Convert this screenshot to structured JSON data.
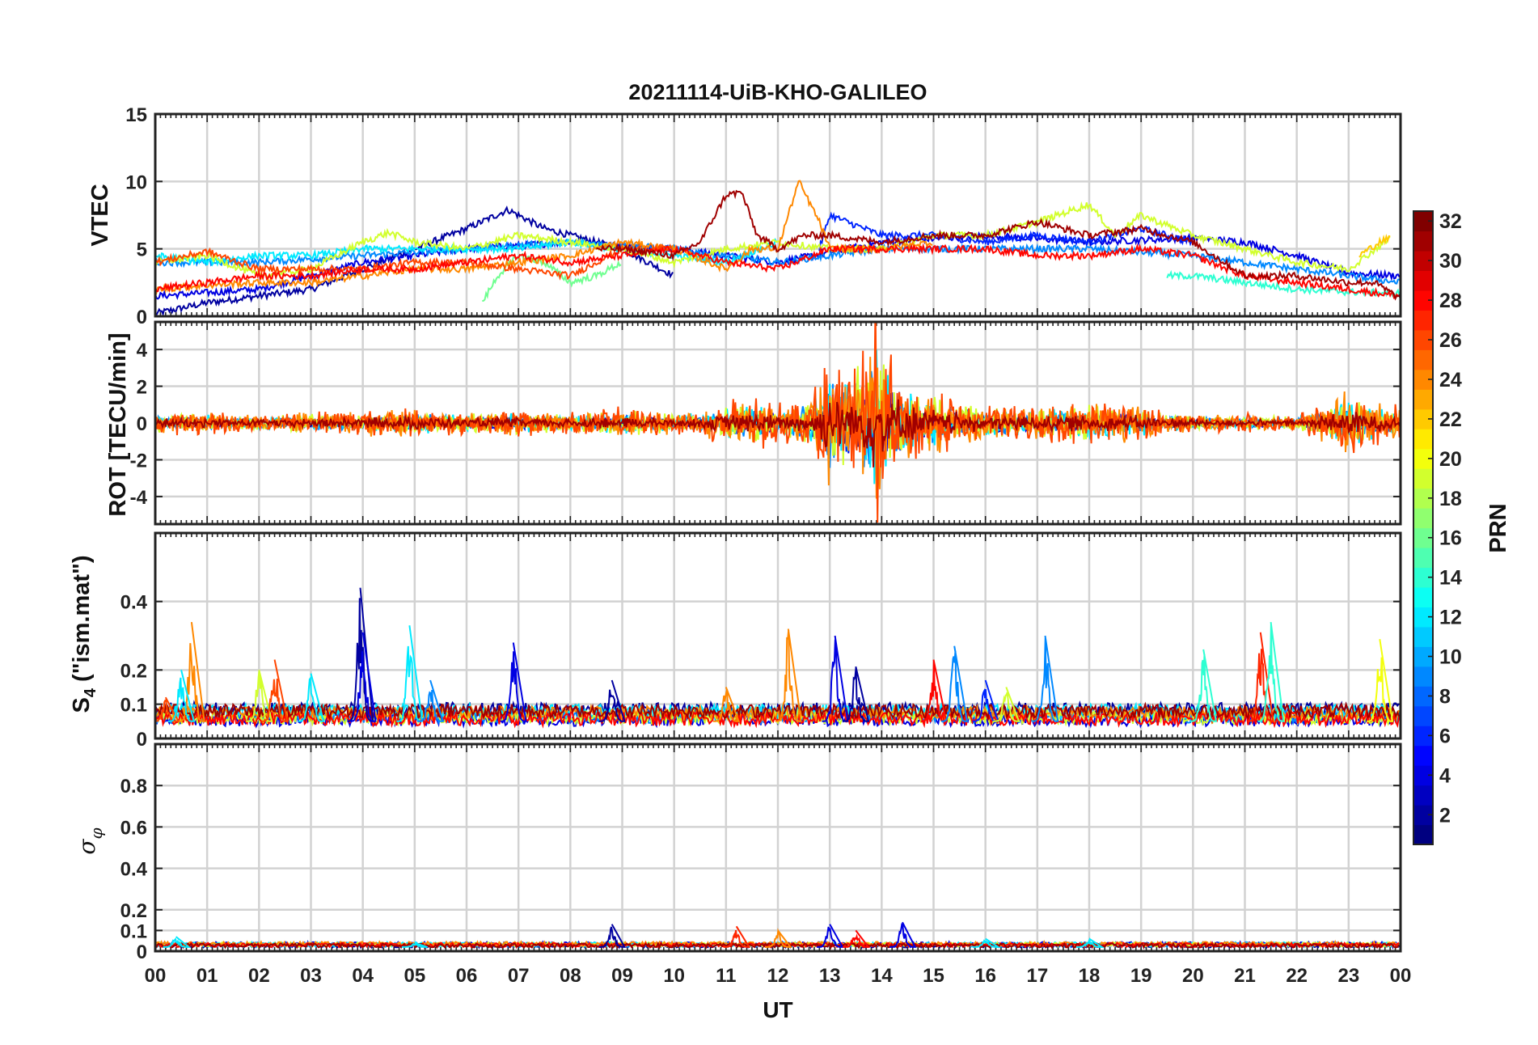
{
  "figure": {
    "title": "20211114-UiB-KHO-GALILEO",
    "xlabel": "UT",
    "x_tick_labels": [
      "00",
      "01",
      "02",
      "03",
      "04",
      "05",
      "06",
      "07",
      "08",
      "09",
      "10",
      "11",
      "12",
      "13",
      "14",
      "15",
      "16",
      "17",
      "18",
      "19",
      "20",
      "21",
      "22",
      "23",
      "00"
    ]
  },
  "colorbar": {
    "label": "PRN",
    "ticks": [
      2,
      4,
      6,
      8,
      10,
      12,
      14,
      16,
      18,
      20,
      22,
      24,
      26,
      28,
      30,
      32
    ],
    "range": [
      1,
      32
    ],
    "colormap": "jet"
  },
  "chart_data": [
    {
      "type": "line",
      "panel": "vtec",
      "ylabel": "VTEC",
      "ylim": [
        0,
        15
      ],
      "yticks": [
        0,
        5,
        10,
        15
      ],
      "xlim": [
        0,
        24
      ],
      "grid": true,
      "series": [
        {
          "prn": 2,
          "x": [
            0,
            1,
            2,
            3,
            4,
            5,
            6,
            6.8,
            7.5,
            8,
            9,
            10
          ],
          "y": [
            0.2,
            1,
            1.5,
            2,
            3.5,
            5,
            6.5,
            7.9,
            6.5,
            6,
            5,
            3
          ]
        },
        {
          "prn": 4,
          "x": [
            0,
            2,
            4,
            6,
            8,
            10,
            12,
            14,
            16,
            18,
            20,
            21,
            22,
            23,
            24
          ],
          "y": [
            1.5,
            2,
            4,
            5,
            5.5,
            5,
            4,
            5.5,
            6,
            5.5,
            5.8,
            5.5,
            4.5,
            3.2,
            3
          ]
        },
        {
          "prn": 6,
          "x": [
            12.8,
            13,
            14,
            15,
            16,
            17,
            18,
            19,
            20
          ],
          "y": [
            5,
            7.5,
            6,
            6,
            5.5,
            6,
            5.5,
            6.5,
            5.5
          ]
        },
        {
          "prn": 9,
          "x": [
            0,
            2,
            4,
            6,
            8,
            10,
            12,
            14,
            16,
            18,
            20,
            22,
            24
          ],
          "y": [
            4,
            4,
            4.5,
            5,
            5.5,
            5,
            4,
            5,
            5,
            5,
            4.5,
            3.5,
            2.5
          ]
        },
        {
          "prn": 12,
          "x": [
            0,
            1,
            2,
            3,
            4,
            5,
            6,
            7,
            8,
            9,
            10,
            11,
            12
          ],
          "y": [
            4.5,
            4,
            4.5,
            4.5,
            5,
            5,
            5,
            5,
            5.5,
            5,
            4.5,
            4,
            5.5
          ]
        },
        {
          "prn": 14,
          "x": [
            19.5,
            20,
            21,
            22,
            23,
            24
          ],
          "y": [
            3,
            3,
            2.5,
            2,
            1.8,
            1.7
          ]
        },
        {
          "prn": 16,
          "x": [
            6.3,
            6.6,
            7,
            7.5,
            8,
            8.5,
            9
          ],
          "y": [
            1,
            3,
            4.5,
            4,
            2.5,
            3,
            4
          ]
        },
        {
          "prn": 19,
          "x": [
            0,
            1,
            2,
            3,
            4,
            4.5,
            5,
            6,
            7,
            8,
            9,
            10,
            11,
            12,
            13,
            14,
            15,
            16,
            17,
            18,
            18.5,
            19,
            20,
            21,
            22,
            23,
            23.8
          ],
          "y": [
            4,
            4.5,
            3,
            3.5,
            5.5,
            6.2,
            5.5,
            5,
            6,
            5.5,
            5,
            4,
            5,
            5.5,
            5,
            5,
            6,
            6,
            7,
            8.3,
            6,
            7.5,
            6,
            5,
            4,
            3.5,
            5.8
          ]
        },
        {
          "prn": 22,
          "x": [
            23.2,
            23.6,
            23.8
          ],
          "y": [
            4.5,
            5.5,
            5.8
          ]
        },
        {
          "prn": 24,
          "x": [
            0,
            1,
            2,
            3,
            4,
            5,
            6,
            7,
            8,
            9,
            10,
            11,
            11.5,
            12,
            12.4,
            12.8,
            13,
            14,
            15
          ],
          "y": [
            2,
            2.3,
            2.5,
            2.5,
            3,
            3.5,
            3.5,
            4,
            4.5,
            5.5,
            5,
            3.5,
            5,
            5,
            10,
            7,
            5,
            5,
            5.5
          ]
        },
        {
          "prn": 26,
          "x": [
            0,
            1,
            2,
            3,
            4,
            5,
            6,
            7,
            8,
            9,
            10
          ],
          "y": [
            4,
            4.8,
            3.5,
            3.5,
            3.5,
            4,
            4,
            3.5,
            3,
            5,
            5
          ]
        },
        {
          "prn": 28,
          "x": [
            0,
            1,
            2,
            3,
            4,
            5,
            6,
            7,
            8,
            9,
            10,
            11,
            12,
            13,
            14,
            15,
            16,
            17,
            18,
            19,
            20,
            21,
            22,
            23,
            24
          ],
          "y": [
            2,
            2.5,
            3,
            3,
            3.5,
            3.5,
            4,
            4.5,
            4,
            4.5,
            5,
            4,
            3.5,
            5,
            5,
            5,
            5,
            4.5,
            4.5,
            5,
            4.5,
            3,
            2.5,
            2,
            1.5
          ]
        },
        {
          "prn": 31,
          "x": [
            8.5,
            9,
            10,
            10.5,
            11,
            11.3,
            11.6,
            12,
            12.5,
            13,
            14,
            15,
            16,
            17,
            18,
            19,
            20,
            21,
            22,
            23,
            23.5,
            24
          ],
          "y": [
            5,
            5,
            4.5,
            5.5,
            9,
            9.2,
            6,
            5,
            6,
            6,
            5.5,
            6,
            6,
            7,
            6,
            6.5,
            5.5,
            3,
            3,
            2.5,
            2.5,
            1.3
          ]
        }
      ]
    },
    {
      "type": "line",
      "panel": "rot",
      "ylabel": "ROT [TECU/min]",
      "ylim": [
        -5.5,
        5.5
      ],
      "yticks": [
        -4,
        -2,
        0,
        2,
        4
      ],
      "xlim": [
        0,
        24
      ],
      "grid": true,
      "envelope": {
        "x": [
          0,
          1,
          2,
          3,
          4,
          5,
          6,
          7,
          8,
          9,
          10,
          10.5,
          11,
          11.5,
          12,
          12.5,
          12.8,
          13,
          13.3,
          13.6,
          13.9,
          14.2,
          14.6,
          15,
          16,
          17,
          18,
          19,
          20,
          21,
          22,
          23,
          23.5,
          24
        ],
        "amplitude": [
          0.5,
          0.5,
          0.4,
          0.5,
          0.6,
          0.7,
          0.5,
          0.6,
          0.5,
          0.7,
          0.5,
          0.6,
          1.0,
          1.2,
          0.9,
          1.2,
          2.0,
          3.5,
          2.5,
          3.0,
          5.3,
          3.0,
          2.0,
          1.5,
          0.8,
          0.8,
          1.0,
          0.8,
          0.4,
          0.4,
          0.3,
          1.5,
          1.0,
          0.8
        ]
      },
      "series_prns": [
        2,
        4,
        9,
        12,
        19,
        24,
        26,
        31
      ]
    },
    {
      "type": "line",
      "panel": "s4",
      "ylabel": "S4 (\"ism.mat\")",
      "ylim": [
        0,
        0.6
      ],
      "yticks": [
        0,
        0.1,
        0.2,
        0.4
      ],
      "xlim": [
        0,
        24
      ],
      "grid": true,
      "baseline": 0.05,
      "spikes": [
        {
          "prn": 26,
          "x": 0.2,
          "y": 0.12
        },
        {
          "prn": 24,
          "x": 0.7,
          "y": 0.34
        },
        {
          "prn": 12,
          "x": 0.5,
          "y": 0.2
        },
        {
          "prn": 19,
          "x": 2.0,
          "y": 0.2
        },
        {
          "prn": 26,
          "x": 2.3,
          "y": 0.23
        },
        {
          "prn": 12,
          "x": 3.0,
          "y": 0.19
        },
        {
          "prn": 2,
          "x": 3.95,
          "y": 0.44
        },
        {
          "prn": 4,
          "x": 4.0,
          "y": 0.31
        },
        {
          "prn": 12,
          "x": 4.9,
          "y": 0.33
        },
        {
          "prn": 9,
          "x": 5.3,
          "y": 0.17
        },
        {
          "prn": 4,
          "x": 6.9,
          "y": 0.28
        },
        {
          "prn": 2,
          "x": 8.8,
          "y": 0.17
        },
        {
          "prn": 24,
          "x": 11.0,
          "y": 0.15
        },
        {
          "prn": 24,
          "x": 12.2,
          "y": 0.32
        },
        {
          "prn": 4,
          "x": 13.1,
          "y": 0.3
        },
        {
          "prn": 2,
          "x": 13.5,
          "y": 0.21
        },
        {
          "prn": 28,
          "x": 15.0,
          "y": 0.23
        },
        {
          "prn": 9,
          "x": 15.4,
          "y": 0.27
        },
        {
          "prn": 6,
          "x": 16.0,
          "y": 0.17
        },
        {
          "prn": 9,
          "x": 17.15,
          "y": 0.3
        },
        {
          "prn": 19,
          "x": 16.4,
          "y": 0.15
        },
        {
          "prn": 14,
          "x": 20.2,
          "y": 0.26
        },
        {
          "prn": 27,
          "x": 21.3,
          "y": 0.31
        },
        {
          "prn": 14,
          "x": 21.5,
          "y": 0.34
        },
        {
          "prn": 20,
          "x": 23.6,
          "y": 0.29
        }
      ]
    },
    {
      "type": "line",
      "panel": "sigma_phi",
      "ylabel": "σφ",
      "ylim": [
        0,
        1
      ],
      "yticks": [
        0,
        0.1,
        0.2,
        0.4,
        0.6,
        0.8
      ],
      "xlim": [
        0,
        24
      ],
      "grid": true,
      "baseline": 0.02,
      "spikes": [
        {
          "prn": 12,
          "x": 0.4,
          "y": 0.07
        },
        {
          "prn": 12,
          "x": 5.0,
          "y": 0.04
        },
        {
          "prn": 2,
          "x": 8.8,
          "y": 0.13
        },
        {
          "prn": 27,
          "x": 11.2,
          "y": 0.12
        },
        {
          "prn": 24,
          "x": 12.0,
          "y": 0.1
        },
        {
          "prn": 4,
          "x": 13.0,
          "y": 0.13
        },
        {
          "prn": 28,
          "x": 13.5,
          "y": 0.1
        },
        {
          "prn": 4,
          "x": 14.4,
          "y": 0.14
        },
        {
          "prn": 12,
          "x": 16.0,
          "y": 0.06
        },
        {
          "prn": 12,
          "x": 18.0,
          "y": 0.06
        }
      ]
    }
  ]
}
